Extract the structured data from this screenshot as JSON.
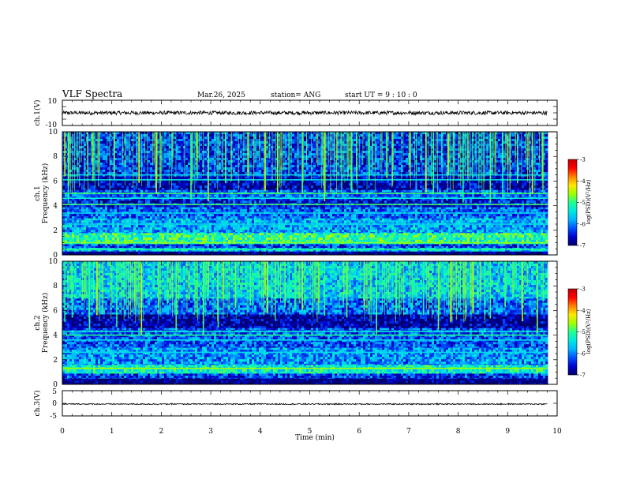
{
  "header": {
    "title": "VLF Spectra",
    "date": "Mar.26, 2025",
    "station": "station= ANG",
    "start": "start  UT  =   9  : 10 : 0"
  },
  "colors": {
    "cmap": [
      "#00006e",
      "#0000cc",
      "#0050ff",
      "#00b4ff",
      "#00e8e0",
      "#20ff90",
      "#a0ff00",
      "#ffe800",
      "#ff8000",
      "#ff0000",
      "#c00000"
    ],
    "trace": "#000000"
  },
  "chart_data": [
    {
      "type": "line",
      "panel": "ch.1 waveform",
      "ylabel": "ch.1(V)",
      "xlim": [
        0,
        10
      ],
      "ylim": [
        -10,
        10
      ],
      "yticks": [
        "10",
        "-10"
      ],
      "series": [
        {
          "x_range": [
            0,
            9.8
          ],
          "level": 0,
          "amplitude": 1.5
        }
      ]
    },
    {
      "type": "heatmap",
      "panel": "ch.1 spectrogram",
      "ylabel": [
        "ch.1",
        "Frequency (kHz)"
      ],
      "xlim": [
        0,
        10
      ],
      "ylim": [
        0,
        10
      ],
      "yticks": [
        "0",
        "2",
        "4",
        "6",
        "8",
        "10"
      ],
      "x_extent": [
        0,
        9.8
      ],
      "colorbar": {
        "label": "log(PSD)(V²/Hz)",
        "range": [
          -7,
          -3
        ],
        "ticks": [
          "-3",
          "-4",
          "-5",
          "-6",
          "-7"
        ]
      },
      "bands": [
        {
          "f_low": 0,
          "f_high": 0.3,
          "log_psd": -7.0
        },
        {
          "f_low": 0.3,
          "f_high": 0.6,
          "log_psd": -5.7
        },
        {
          "f_low": 0.6,
          "f_high": 0.9,
          "log_psd": -6.3
        },
        {
          "f_low": 0.9,
          "f_high": 1.8,
          "log_psd": -5.1
        },
        {
          "f_low": 1.8,
          "f_high": 3.0,
          "log_psd": -5.8
        },
        {
          "f_low": 3.0,
          "f_high": 3.9,
          "log_psd": -6.1
        },
        {
          "f_low": 3.9,
          "f_high": 4.6,
          "log_psd": -6.5
        },
        {
          "f_low": 4.6,
          "f_high": 5.3,
          "log_psd": -6.1
        },
        {
          "f_low": 5.3,
          "f_high": 6.4,
          "log_psd": -6.7
        },
        {
          "f_low": 6.4,
          "f_high": 10.0,
          "log_psd": -6.3
        }
      ],
      "lines": [
        {
          "f": 0.45,
          "log_psd": -5.0
        },
        {
          "f": 1.0,
          "log_psd": -4.7
        },
        {
          "f": 2.5,
          "log_psd": -5.5
        },
        {
          "f": 3.4,
          "log_psd": -5.6
        },
        {
          "f": 4.1,
          "log_psd": -4.9
        },
        {
          "f": 4.6,
          "log_psd": -5.4
        },
        {
          "f": 5.0,
          "log_psd": -4.9
        },
        {
          "f": 6.1,
          "log_psd": -5.5
        },
        {
          "f": 6.5,
          "log_psd": -5.6
        }
      ],
      "events": [
        0.05,
        0.12,
        0.62,
        1.05,
        1.55,
        1.9,
        2.6,
        2.95,
        3.3,
        3.75,
        4.1,
        4.35,
        4.85,
        5.3,
        5.85,
        6.2,
        6.55,
        7.35,
        7.5,
        7.8,
        8.1,
        8.65,
        8.9,
        9.2,
        9.5,
        9.7
      ]
    },
    {
      "type": "heatmap",
      "panel": "ch.2 spectrogram",
      "ylabel": [
        "ch.2",
        "Frequency (kHz)"
      ],
      "xlim": [
        0,
        10
      ],
      "ylim": [
        0,
        10
      ],
      "yticks": [
        "0",
        "2",
        "4",
        "6",
        "8",
        "10"
      ],
      "x_extent": [
        0,
        9.8
      ],
      "colorbar": {
        "label": "log(PSD)(V²/Hz)",
        "range": [
          -7,
          -3
        ],
        "ticks": [
          "-3",
          "-4",
          "-5",
          "-6",
          "-7"
        ]
      },
      "bands": [
        {
          "f_low": 0,
          "f_high": 0.5,
          "log_psd": -7.0
        },
        {
          "f_low": 0.5,
          "f_high": 0.9,
          "log_psd": -6.3
        },
        {
          "f_low": 0.9,
          "f_high": 1.6,
          "log_psd": -5.3
        },
        {
          "f_low": 1.6,
          "f_high": 3.0,
          "log_psd": -5.9
        },
        {
          "f_low": 3.0,
          "f_high": 4.6,
          "log_psd": -6.2
        },
        {
          "f_low": 4.6,
          "f_high": 5.7,
          "log_psd": -6.8
        },
        {
          "f_low": 5.7,
          "f_high": 7.0,
          "log_psd": -6.1
        },
        {
          "f_low": 7.0,
          "f_high": 10.0,
          "log_psd": -5.6
        }
      ],
      "lines": [
        {
          "f": 1.3,
          "log_psd": -4.6
        },
        {
          "f": 2.6,
          "log_psd": -5.5
        },
        {
          "f": 3.6,
          "log_psd": -5.5
        },
        {
          "f": 4.0,
          "log_psd": -5.0
        },
        {
          "f": 4.3,
          "log_psd": -5.3
        }
      ],
      "events": [
        0.05,
        0.2,
        0.55,
        0.7,
        1.1,
        1.6,
        1.95,
        2.3,
        2.85,
        3.15,
        3.5,
        3.8,
        4.15,
        4.5,
        4.7,
        4.85,
        5.3,
        5.75,
        6.1,
        6.35,
        6.75,
        7.3,
        7.6,
        7.85,
        8.3,
        8.65,
        8.95,
        9.3,
        9.6
      ]
    },
    {
      "type": "line",
      "panel": "ch.3 waveform",
      "ylabel": "ch.3(V)",
      "xlim": [
        0,
        10
      ],
      "ylim": [
        -5,
        5
      ],
      "yticks": [
        "5",
        "0",
        "-5"
      ],
      "xlabel": "Time  (min)",
      "xticks": [
        "0",
        "1",
        "2",
        "3",
        "4",
        "5",
        "6",
        "7",
        "8",
        "9",
        "10"
      ],
      "series": [
        {
          "x_range": [
            0,
            9.8
          ],
          "level": -0.3,
          "amplitude": 0.25
        }
      ]
    }
  ]
}
